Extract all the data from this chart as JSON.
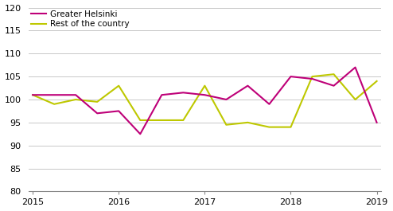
{
  "x_labels": [
    "2015",
    "2016",
    "2017",
    "2018",
    "2019"
  ],
  "x_ticks": [
    0,
    4,
    8,
    12,
    16
  ],
  "helsinki": [
    101.0,
    101.0,
    101.0,
    97.0,
    97.5,
    92.5,
    101.0,
    101.5,
    101.0,
    100.0,
    103.0,
    99.0,
    105.0,
    104.5,
    103.0,
    107.0,
    95.0
  ],
  "rest": [
    101.0,
    99.0,
    100.0,
    99.5,
    103.0,
    95.5,
    95.5,
    95.5,
    103.0,
    94.5,
    95.0,
    94.0,
    94.0,
    105.0,
    105.5,
    100.0,
    104.0
  ],
  "helsinki_color": "#be0078",
  "rest_color": "#bec800",
  "ylim": [
    80,
    120
  ],
  "yticks": [
    80,
    85,
    90,
    95,
    100,
    105,
    110,
    115,
    120
  ],
  "legend_labels": [
    "Greater Helsinki",
    "Rest of the country"
  ],
  "background_color": "#ffffff",
  "grid_color": "#c8c8c8",
  "linewidth": 1.5
}
